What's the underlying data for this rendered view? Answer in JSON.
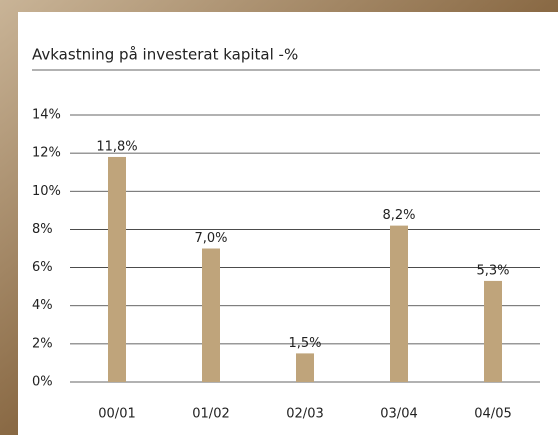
{
  "chart_data": {
    "type": "bar",
    "title": "Avkastning på investerat kapital -%",
    "categories": [
      "00/01",
      "01/02",
      "02/03",
      "03/04",
      "04/05"
    ],
    "values": [
      11.8,
      7.0,
      1.5,
      8.2,
      5.3
    ],
    "value_labels": [
      "11,8%",
      "7,0%",
      "1,5%",
      "8,2%",
      "5,3%"
    ],
    "color": "#bfa47b",
    "ylim": [
      0,
      14
    ],
    "yticks": [
      {
        "value": 0,
        "label": "0%"
      },
      {
        "value": 2,
        "label": "2%"
      },
      {
        "value": 4,
        "label": "4%"
      },
      {
        "value": 6,
        "label": "6%"
      },
      {
        "value": 8,
        "label": "8%"
      },
      {
        "value": 10,
        "label": "10%"
      },
      {
        "value": 12,
        "label": "12%"
      },
      {
        "value": 14,
        "label": "14%"
      }
    ],
    "grid": true
  }
}
